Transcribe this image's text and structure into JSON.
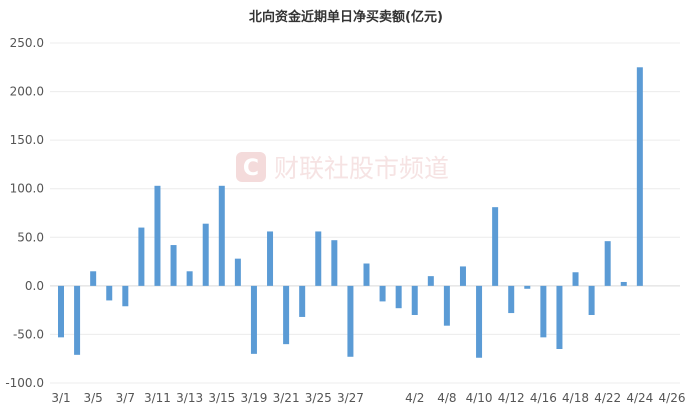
{
  "chart_data": {
    "type": "bar",
    "title": "北向资金近期单日净买卖额(亿元)",
    "xlabel": "",
    "ylabel": "",
    "ylim": [
      -100,
      250
    ],
    "yticks": [
      "250.0",
      "200.0",
      "150.0",
      "100.0",
      "50.0",
      "0.0",
      "-50.0",
      "-100.0"
    ],
    "grid": true,
    "legend": "none",
    "bar_color": "#5b9bd5",
    "categories": [
      "3/1",
      "3/4",
      "3/5",
      "3/6",
      "3/7",
      "3/8",
      "3/11",
      "3/12",
      "3/13",
      "3/14",
      "3/15",
      "3/18",
      "3/19",
      "3/20",
      "3/21",
      "3/22",
      "3/25",
      "3/26",
      "3/27",
      "3/28",
      "3/29",
      "4/1",
      "4/2",
      "4/3",
      "4/8",
      "4/9",
      "4/10",
      "4/11",
      "4/12",
      "4/15",
      "4/16",
      "4/17",
      "4/18",
      "4/19",
      "4/22",
      "4/23",
      "4/24",
      "4/25",
      "4/26"
    ],
    "xtick_labels": [
      "3/1",
      "3/5",
      "3/7",
      "3/11",
      "3/13",
      "3/15",
      "3/19",
      "3/21",
      "3/25",
      "3/27",
      "4/2",
      "4/8",
      "4/10",
      "4/12",
      "4/16",
      "4/18",
      "4/22",
      "4/24",
      "4/26"
    ],
    "values": [
      -53,
      -71,
      15,
      -15,
      -21,
      60,
      103,
      42,
      15,
      64,
      103,
      28,
      -70,
      56,
      -60,
      -32,
      56,
      47,
      -73,
      23,
      -16,
      -23,
      -30,
      10,
      -41,
      20,
      -74,
      81,
      -28,
      -3,
      -53,
      -65,
      14,
      -30,
      46,
      4,
      225,
      0,
      0
    ],
    "watermark": "财联社股市频道"
  }
}
